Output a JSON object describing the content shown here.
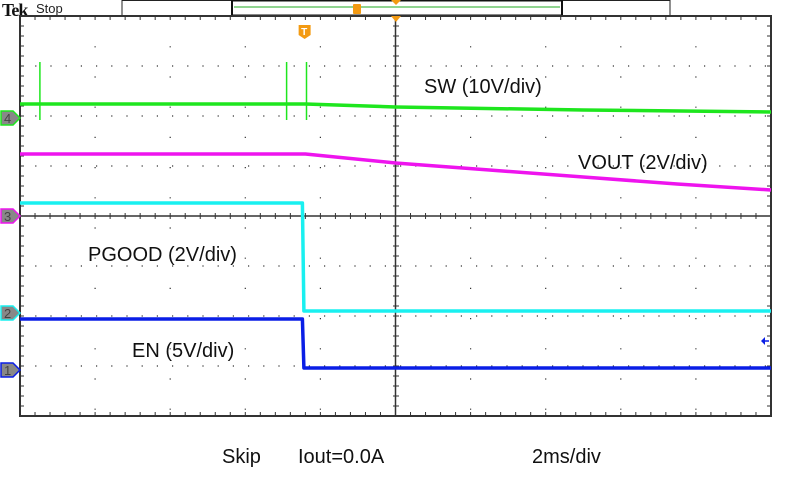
{
  "header": {
    "brand": "Tek",
    "acquisition_state": "Stop"
  },
  "footer": {
    "mode": "Skip",
    "load": "Iout=0.0A",
    "timebase": "2ms/div"
  },
  "colors": {
    "ch1": "#0a1ee6",
    "ch2": "#19f0f0",
    "ch3": "#ee14ee",
    "ch4": "#1ee61e",
    "trigger": "#f39a12",
    "grid": "#333333"
  },
  "chart_data": {
    "type": "line",
    "x_unit": "ms relative to trigger",
    "y_unit": "divisions from screen center",
    "xlim": [
      -10,
      10
    ],
    "ylim": [
      -4,
      4
    ],
    "grid": true,
    "series": [
      {
        "name": "SW (10V/div)",
        "channel": "4",
        "color": "#1ee61e",
        "points": [
          [
            -10,
            2.24
          ],
          [
            -2.4,
            2.24
          ],
          [
            0,
            2.18
          ],
          [
            5,
            2.12
          ],
          [
            10,
            2.08
          ]
        ],
        "spikes": [
          [
            -9.47,
            1.92,
            3.08
          ],
          [
            -2.9,
            1.92,
            3.08
          ],
          [
            -2.37,
            1.92,
            3.08
          ]
        ]
      },
      {
        "name": "VOUT (2V/div)",
        "channel": "3",
        "color": "#ee14ee",
        "points": [
          [
            -10,
            1.24
          ],
          [
            -2.4,
            1.24
          ],
          [
            0,
            1.06
          ],
          [
            2.5,
            0.92
          ],
          [
            5,
            0.78
          ],
          [
            7.5,
            0.64
          ],
          [
            10,
            0.52
          ]
        ]
      },
      {
        "name": "PGOOD (2V/div)",
        "channel": "2",
        "color": "#19f0f0",
        "points": [
          [
            -10,
            0.26
          ],
          [
            -2.48,
            0.26
          ],
          [
            -2.44,
            -1.9
          ],
          [
            10,
            -1.9
          ]
        ]
      },
      {
        "name": "EN (5V/div)",
        "channel": "1",
        "color": "#0a1ee6",
        "points": [
          [
            -10,
            -2.06
          ],
          [
            -2.48,
            -2.06
          ],
          [
            -2.44,
            -3.04
          ],
          [
            10,
            -3.04
          ]
        ]
      }
    ],
    "channel_markers": [
      {
        "label": "4",
        "level": 1.96,
        "color": "#1ee61e"
      },
      {
        "label": "3",
        "level": 0,
        "color": "#ee14ee"
      },
      {
        "label": "2",
        "level": -1.94,
        "color": "#19f0f0"
      },
      {
        "label": "1",
        "level": -3.08,
        "color": "#0a1ee6"
      }
    ],
    "trigger_marker": {
      "label": "T",
      "time": -2.42
    }
  }
}
